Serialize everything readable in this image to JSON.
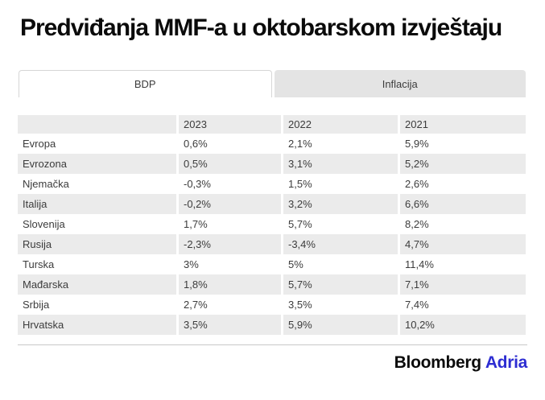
{
  "title": "Predviđanja MMF-a u oktobarskom izvještaju",
  "tabs": [
    {
      "label": "BDP",
      "active": true
    },
    {
      "label": "Inflacija",
      "active": false
    }
  ],
  "table": {
    "columns": [
      "",
      "2023",
      "2022",
      "2021"
    ],
    "rows": [
      {
        "label": "Evropa",
        "values": [
          "0,6%",
          "2,1%",
          "5,9%"
        ]
      },
      {
        "label": "Evrozona",
        "values": [
          "0,5%",
          "3,1%",
          "5,2%"
        ]
      },
      {
        "label": "Njemačka",
        "values": [
          "-0,3%",
          "1,5%",
          "2,6%"
        ]
      },
      {
        "label": "Italija",
        "values": [
          "-0,2%",
          "3,2%",
          "6,6%"
        ]
      },
      {
        "label": "Slovenija",
        "values": [
          "1,7%",
          "5,7%",
          "8,2%"
        ]
      },
      {
        "label": "Rusija",
        "values": [
          "-2,3%",
          "-3,4%",
          "4,7%"
        ]
      },
      {
        "label": "Turska",
        "values": [
          "3%",
          "5%",
          "11,4%"
        ]
      },
      {
        "label": "Mađarska",
        "values": [
          "1,8%",
          "5,7%",
          "7,1%"
        ]
      },
      {
        "label": "Srbija",
        "values": [
          "2,7%",
          "3,5%",
          "7,4%"
        ]
      },
      {
        "label": "Hrvatska",
        "values": [
          "3,5%",
          "5,9%",
          "10,2%"
        ]
      }
    ]
  },
  "footer": {
    "brand": "Bloomberg",
    "brand_suffix": "Adria"
  },
  "colors": {
    "accent_blue": "#2d2dd2",
    "row_stripe": "#ebebeb",
    "tab_inactive": "#e4e4e4",
    "text": "#3c3c3c"
  },
  "chart_data": {
    "type": "table",
    "title": "Predviđanja MMF-a u oktobarskom izvještaju",
    "tabs": [
      "BDP",
      "Inflacija"
    ],
    "active_tab": "BDP",
    "columns": [
      "2023",
      "2022",
      "2021"
    ],
    "unit": "%",
    "rows": [
      {
        "label": "Evropa",
        "values": [
          0.6,
          2.1,
          5.9
        ]
      },
      {
        "label": "Evrozona",
        "values": [
          0.5,
          3.1,
          5.2
        ]
      },
      {
        "label": "Njemačka",
        "values": [
          -0.3,
          1.5,
          2.6
        ]
      },
      {
        "label": "Italija",
        "values": [
          -0.2,
          3.2,
          6.6
        ]
      },
      {
        "label": "Slovenija",
        "values": [
          1.7,
          5.7,
          8.2
        ]
      },
      {
        "label": "Rusija",
        "values": [
          -2.3,
          -3.4,
          4.7
        ]
      },
      {
        "label": "Turska",
        "values": [
          3,
          5,
          11.4
        ]
      },
      {
        "label": "Mađarska",
        "values": [
          1.8,
          5.7,
          7.1
        ]
      },
      {
        "label": "Srbija",
        "values": [
          2.7,
          3.5,
          7.4
        ]
      },
      {
        "label": "Hrvatska",
        "values": [
          3.5,
          5.9,
          10.2
        ]
      }
    ]
  }
}
